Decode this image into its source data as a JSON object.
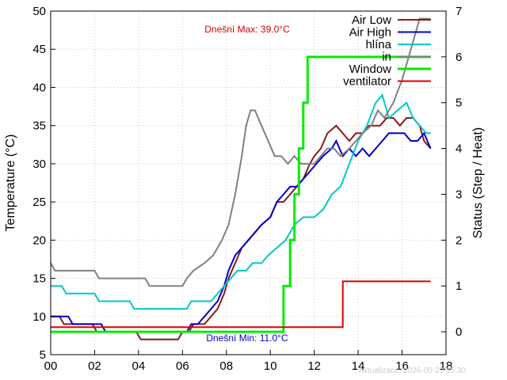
{
  "chart_data": {
    "type": "line",
    "title": "",
    "xlabel": "",
    "ylabel": "Temperature (°C)",
    "y2label": "Status (Step / Heat)",
    "xlim": [
      0,
      18
    ],
    "ylim": [
      5,
      50
    ],
    "y2lim": [
      -0.5,
      7
    ],
    "x_ticks": [
      "00",
      "02",
      "04",
      "06",
      "08",
      "10",
      "12",
      "14",
      "16",
      "18"
    ],
    "y_ticks": [
      5,
      10,
      15,
      20,
      25,
      30,
      35,
      40,
      45,
      50
    ],
    "y2_ticks": [
      0,
      1,
      2,
      3,
      4,
      5,
      6,
      7
    ],
    "grid": true,
    "legend_position": "top-right",
    "annotations": {
      "max": "Dnešní Max: 39.0°C",
      "min": "Dnešní Min: 11.0°C",
      "updated": "Aktualizace: 2026-05-29 15:30"
    },
    "colors": {
      "max": "#dd0000",
      "min": "#0000cc",
      "updated": "#cccccc"
    },
    "series": [
      {
        "name": "Air Low",
        "color": "#8b1a1a",
        "width": 2,
        "axis": "y",
        "points": [
          [
            0,
            10
          ],
          [
            0.4,
            10
          ],
          [
            0.6,
            9
          ],
          [
            1.9,
            9
          ],
          [
            2.1,
            8
          ],
          [
            3.9,
            8
          ],
          [
            4.1,
            7
          ],
          [
            5.8,
            7
          ],
          [
            6.0,
            8
          ],
          [
            6.3,
            8
          ],
          [
            6.5,
            9
          ],
          [
            7.0,
            9
          ],
          [
            7.3,
            10
          ],
          [
            7.6,
            11
          ],
          [
            7.9,
            13
          ],
          [
            8.1,
            15
          ],
          [
            8.4,
            17
          ],
          [
            8.7,
            19
          ],
          [
            9.0,
            20
          ],
          [
            9.3,
            21
          ],
          [
            9.6,
            22
          ],
          [
            10.0,
            23
          ],
          [
            10.3,
            25
          ],
          [
            10.6,
            25
          ],
          [
            10.9,
            26
          ],
          [
            11.2,
            27
          ],
          [
            11.5,
            28
          ],
          [
            11.8,
            30
          ],
          [
            12.0,
            31
          ],
          [
            12.3,
            32
          ],
          [
            12.6,
            34
          ],
          [
            13.0,
            35
          ],
          [
            13.3,
            34
          ],
          [
            13.6,
            33
          ],
          [
            13.9,
            34
          ],
          [
            14.2,
            34
          ],
          [
            14.5,
            35
          ],
          [
            15.0,
            35
          ],
          [
            15.3,
            36
          ],
          [
            15.6,
            36
          ],
          [
            15.9,
            35
          ],
          [
            16.2,
            36
          ],
          [
            16.5,
            36
          ],
          [
            16.8,
            35
          ],
          [
            17.0,
            33
          ],
          [
            17.3,
            32
          ]
        ]
      },
      {
        "name": "Air High",
        "color": "#0000cc",
        "width": 2,
        "axis": "y",
        "points": [
          [
            0,
            10
          ],
          [
            0.8,
            10
          ],
          [
            1.0,
            9
          ],
          [
            2.3,
            9
          ],
          [
            2.5,
            8
          ],
          [
            6.2,
            8
          ],
          [
            6.4,
            9
          ],
          [
            6.7,
            9
          ],
          [
            7.0,
            10
          ],
          [
            7.3,
            11
          ],
          [
            7.6,
            12
          ],
          [
            7.9,
            14
          ],
          [
            8.1,
            16
          ],
          [
            8.4,
            18
          ],
          [
            8.7,
            19
          ],
          [
            9.0,
            20
          ],
          [
            9.3,
            21
          ],
          [
            9.6,
            22
          ],
          [
            10.0,
            23
          ],
          [
            10.3,
            25
          ],
          [
            10.6,
            26
          ],
          [
            10.9,
            27
          ],
          [
            11.2,
            27
          ],
          [
            11.5,
            28
          ],
          [
            11.8,
            29
          ],
          [
            12.1,
            30
          ],
          [
            12.4,
            31
          ],
          [
            12.8,
            32
          ],
          [
            13.0,
            33
          ],
          [
            13.3,
            31
          ],
          [
            13.6,
            32
          ],
          [
            13.9,
            31
          ],
          [
            14.2,
            32
          ],
          [
            14.5,
            31
          ],
          [
            14.8,
            32
          ],
          [
            15.1,
            33
          ],
          [
            15.4,
            34
          ],
          [
            15.8,
            34
          ],
          [
            16.1,
            34
          ],
          [
            16.4,
            33
          ],
          [
            16.7,
            33
          ],
          [
            17.0,
            34
          ],
          [
            17.3,
            32
          ]
        ]
      },
      {
        "name": "hlína",
        "color": "#00c8c8",
        "width": 2,
        "axis": "y",
        "points": [
          [
            0,
            14
          ],
          [
            0.5,
            14
          ],
          [
            0.7,
            13
          ],
          [
            2.0,
            13
          ],
          [
            2.2,
            12
          ],
          [
            3.6,
            12
          ],
          [
            3.8,
            11
          ],
          [
            6.2,
            11
          ],
          [
            6.4,
            12
          ],
          [
            7.3,
            12
          ],
          [
            7.6,
            13
          ],
          [
            8.2,
            15
          ],
          [
            8.5,
            16
          ],
          [
            8.9,
            16
          ],
          [
            9.2,
            17
          ],
          [
            9.6,
            17
          ],
          [
            9.9,
            18
          ],
          [
            10.3,
            19
          ],
          [
            10.7,
            20
          ],
          [
            11.1,
            22
          ],
          [
            11.5,
            23
          ],
          [
            12.0,
            23
          ],
          [
            12.4,
            24
          ],
          [
            12.8,
            26
          ],
          [
            13.2,
            27
          ],
          [
            13.6,
            30
          ],
          [
            14.0,
            33
          ],
          [
            14.4,
            35
          ],
          [
            14.8,
            38
          ],
          [
            15.1,
            39
          ],
          [
            15.4,
            36
          ],
          [
            15.8,
            37
          ],
          [
            16.2,
            38
          ],
          [
            16.5,
            36
          ],
          [
            16.8,
            35
          ],
          [
            17.1,
            34
          ],
          [
            17.3,
            34
          ]
        ]
      },
      {
        "name": "in",
        "color": "#808080",
        "width": 2,
        "axis": "y",
        "points": [
          [
            0,
            17
          ],
          [
            0.2,
            16
          ],
          [
            2.0,
            16
          ],
          [
            2.2,
            15
          ],
          [
            4.3,
            15
          ],
          [
            4.5,
            14
          ],
          [
            6.0,
            14
          ],
          [
            6.2,
            15
          ],
          [
            6.5,
            16
          ],
          [
            7.0,
            17
          ],
          [
            7.4,
            18
          ],
          [
            7.8,
            20
          ],
          [
            8.1,
            22
          ],
          [
            8.4,
            26
          ],
          [
            8.7,
            31
          ],
          [
            8.9,
            35
          ],
          [
            9.1,
            37
          ],
          [
            9.3,
            37
          ],
          [
            9.6,
            35
          ],
          [
            9.9,
            33
          ],
          [
            10.2,
            31
          ],
          [
            10.5,
            31
          ],
          [
            10.8,
            30
          ],
          [
            11.1,
            31
          ],
          [
            11.4,
            30
          ],
          [
            12.0,
            30
          ],
          [
            12.3,
            31
          ],
          [
            12.6,
            32
          ],
          [
            12.9,
            32
          ],
          [
            13.2,
            31
          ],
          [
            13.6,
            32
          ],
          [
            13.9,
            33
          ],
          [
            14.2,
            34
          ],
          [
            14.6,
            35
          ],
          [
            14.9,
            37
          ],
          [
            15.2,
            36
          ],
          [
            15.6,
            38
          ],
          [
            16.0,
            41
          ],
          [
            16.3,
            44
          ],
          [
            16.6,
            47
          ],
          [
            16.8,
            49
          ],
          [
            17.3,
            49
          ]
        ]
      },
      {
        "name": "Window",
        "color": "#00ee00",
        "width": 3,
        "axis": "y2",
        "points": [
          [
            0,
            0
          ],
          [
            10.6,
            0
          ],
          [
            10.6,
            1
          ],
          [
            10.9,
            1
          ],
          [
            10.9,
            2
          ],
          [
            11.1,
            2
          ],
          [
            11.1,
            3
          ],
          [
            11.3,
            3
          ],
          [
            11.3,
            4
          ],
          [
            11.5,
            4
          ],
          [
            11.5,
            5
          ],
          [
            11.7,
            5
          ],
          [
            11.7,
            6
          ],
          [
            17.3,
            6
          ]
        ]
      },
      {
        "name": "ventilator",
        "color": "#dd0000",
        "width": 2,
        "axis": "y2",
        "points": [
          [
            0,
            0.1
          ],
          [
            13.3,
            0.1
          ],
          [
            13.3,
            1.1
          ],
          [
            17.3,
            1.1
          ]
        ]
      }
    ]
  }
}
